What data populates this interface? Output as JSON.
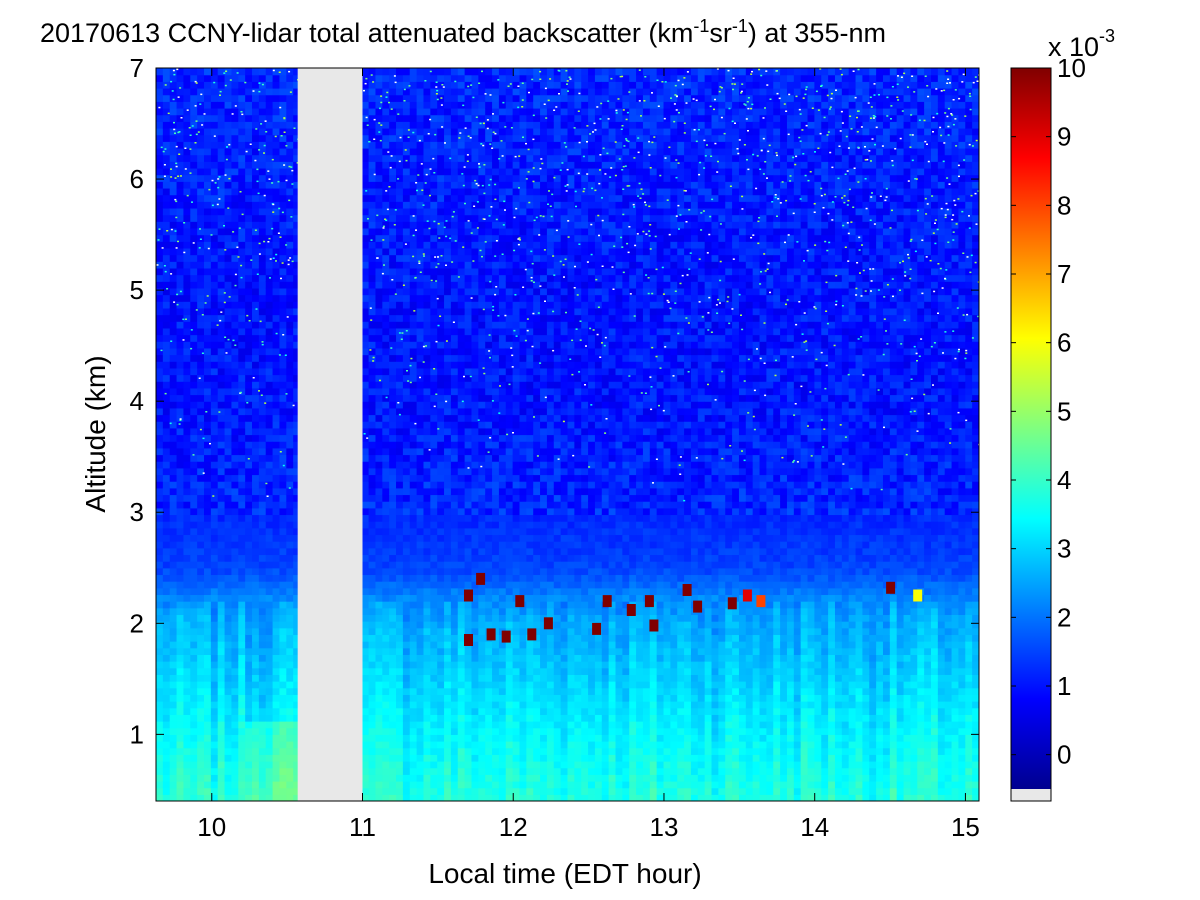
{
  "chart_data": {
    "type": "heatmap",
    "title": {
      "prefix": "20170613 CCNY-lidar total attenuated backscatter (km",
      "sup1": "-1",
      "mid": "sr",
      "sup2": "-1",
      "suffix": ") at 355-nm"
    },
    "xlabel": "Local time (EDT hour)",
    "ylabel": "Altitude (km)",
    "xlim": [
      9.63,
      15.09
    ],
    "ylim": [
      0.4,
      7
    ],
    "x_ticks": [
      "10",
      "11",
      "12",
      "13",
      "14",
      "15"
    ],
    "y_ticks": [
      "1",
      "2",
      "3",
      "4",
      "5",
      "6",
      "7"
    ],
    "gap_hours": [
      10.57,
      11.0
    ],
    "gap_color": "#e8e8e8",
    "boundary_layer_top_km": 2.2,
    "colorbar": {
      "min": -0.5,
      "max": 10,
      "multiplier_base": "x 10",
      "multiplier_exp": "-3",
      "tick_labels": [
        "0",
        "1",
        "2",
        "3",
        "4",
        "5",
        "6",
        "7",
        "8",
        "9",
        "10"
      ],
      "nan_color": "#e8e8e8"
    },
    "vertical_profile": [
      {
        "altitude_km": 0.4,
        "value": 3.8
      },
      {
        "altitude_km": 1.0,
        "value": 3.4
      },
      {
        "altitude_km": 1.5,
        "value": 3.0
      },
      {
        "altitude_km": 2.0,
        "value": 2.6
      },
      {
        "altitude_km": 2.2,
        "value": 2.3
      },
      {
        "altitude_km": 2.5,
        "value": 1.5
      },
      {
        "altitude_km": 3.0,
        "value": 1.2
      },
      {
        "altitude_km": 4.0,
        "value": 1.0
      },
      {
        "altitude_km": 5.0,
        "value": 1.0
      },
      {
        "altitude_km": 6.0,
        "value": 1.1
      },
      {
        "altitude_km": 7.0,
        "value": 1.2
      }
    ],
    "cloud_features": [
      {
        "time_hour": 11.7,
        "altitude_km": 2.25,
        "value": 10
      },
      {
        "time_hour": 11.7,
        "altitude_km": 1.85,
        "value": 10
      },
      {
        "time_hour": 11.78,
        "altitude_km": 2.4,
        "value": 10
      },
      {
        "time_hour": 11.85,
        "altitude_km": 1.9,
        "value": 10
      },
      {
        "time_hour": 11.95,
        "altitude_km": 1.88,
        "value": 10
      },
      {
        "time_hour": 12.04,
        "altitude_km": 2.2,
        "value": 10
      },
      {
        "time_hour": 12.12,
        "altitude_km": 1.9,
        "value": 10
      },
      {
        "time_hour": 12.23,
        "altitude_km": 2.0,
        "value": 10
      },
      {
        "time_hour": 12.55,
        "altitude_km": 1.95,
        "value": 10
      },
      {
        "time_hour": 12.62,
        "altitude_km": 2.2,
        "value": 10
      },
      {
        "time_hour": 12.78,
        "altitude_km": 2.12,
        "value": 10
      },
      {
        "time_hour": 12.9,
        "altitude_km": 2.2,
        "value": 10
      },
      {
        "time_hour": 12.93,
        "altitude_km": 1.98,
        "value": 10
      },
      {
        "time_hour": 13.15,
        "altitude_km": 2.3,
        "value": 10
      },
      {
        "time_hour": 13.22,
        "altitude_km": 2.15,
        "value": 10
      },
      {
        "time_hour": 13.45,
        "altitude_km": 2.18,
        "value": 10
      },
      {
        "time_hour": 13.55,
        "altitude_km": 2.25,
        "value": 9
      },
      {
        "time_hour": 13.64,
        "altitude_km": 2.2,
        "value": 8
      },
      {
        "time_hour": 14.5,
        "altitude_km": 2.32,
        "value": 10
      },
      {
        "time_hour": 14.68,
        "altitude_km": 2.25,
        "value": 6
      }
    ]
  }
}
